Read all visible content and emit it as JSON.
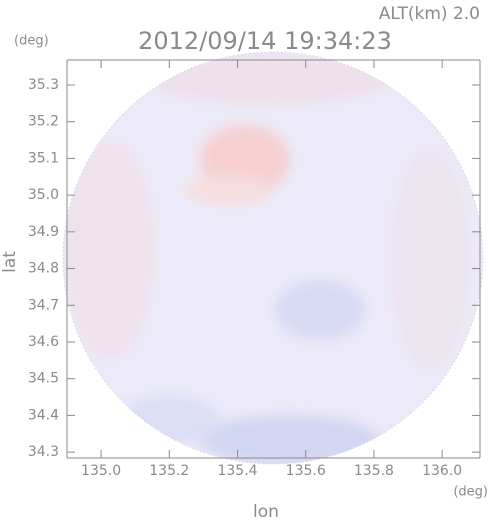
{
  "chart_data": {
    "type": "radar-image",
    "title": "2012/09/14 19:34:23",
    "annotation": "ALT(km) 2.0",
    "y_unit": "(deg)",
    "x_unit": "(deg)",
    "xlabel": "lon",
    "ylabel": "lat",
    "xlim": [
      134.9,
      136.111
    ],
    "ylim": [
      34.284,
      35.368
    ],
    "xticks": [
      {
        "value": 135,
        "label": "135.0"
      },
      135.2,
      135.4,
      135.6,
      135.8,
      {
        "value": 136,
        "label": "136.0"
      }
    ],
    "yticks": [
      34.3,
      34.4,
      34.5,
      34.6,
      34.7,
      34.8,
      34.9,
      {
        "value": 35,
        "label": "35.0"
      },
      35.1,
      35.2,
      35.3
    ]
  }
}
